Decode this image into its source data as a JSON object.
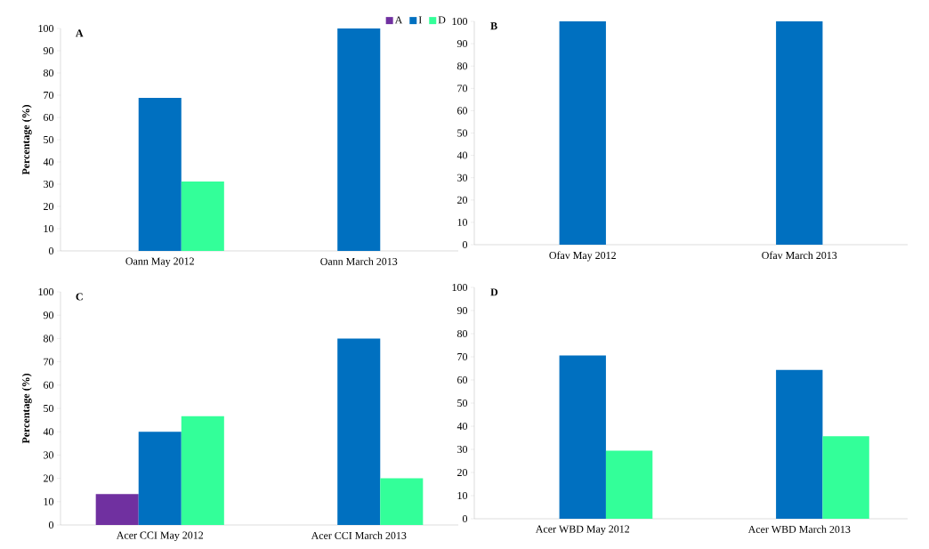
{
  "chart_data": [
    {
      "type": "bar",
      "title": "A",
      "ylabel": "Percentage (%)",
      "categories": [
        "Oann May 2012",
        "Oann March 2013"
      ],
      "series": [
        {
          "name": "A",
          "color": "#7030a0",
          "values": [
            null,
            null
          ]
        },
        {
          "name": "I",
          "color": "#0070c0",
          "values": [
            68.8,
            100
          ]
        },
        {
          "name": "D",
          "color": "#33ff99",
          "values": [
            31.2,
            null
          ]
        }
      ],
      "ylim": [
        0,
        100
      ],
      "yticks": [
        0,
        10,
        20,
        30,
        40,
        50,
        60,
        70,
        80,
        90,
        100
      ],
      "legend": "top right"
    },
    {
      "type": "bar",
      "title": "B",
      "categories": [
        "Ofav May 2012",
        "Ofav March 2013"
      ],
      "series": [
        {
          "color": "#7030a0",
          "values": [
            null,
            null
          ]
        },
        {
          "color": "#0070c0",
          "values": [
            100,
            100
          ]
        },
        {
          "color": "#33ff99",
          "values": [
            null,
            null
          ]
        }
      ],
      "ylim": [
        0,
        100
      ],
      "yticks": [
        0,
        10,
        20,
        30,
        40,
        50,
        60,
        70,
        80,
        90,
        100
      ]
    },
    {
      "type": "bar",
      "title": "C",
      "ylabel": "Percentage (%)",
      "categories": [
        "Acer CCI May 2012",
        "Acer CCI March 2013"
      ],
      "series": [
        {
          "color": "#7030a0",
          "values": [
            13.3,
            null
          ]
        },
        {
          "color": "#0070c0",
          "values": [
            40,
            80
          ]
        },
        {
          "color": "#33ff99",
          "values": [
            46.7,
            20
          ]
        }
      ],
      "ylim": [
        0,
        100
      ],
      "yticks": [
        0,
        10,
        20,
        30,
        40,
        50,
        60,
        70,
        80,
        90,
        100
      ]
    },
    {
      "type": "bar",
      "title": "D",
      "categories": [
        "Acer WBD May 2012",
        "Acer WBD March 2013"
      ],
      "series": [
        {
          "color": "#7030a0",
          "values": [
            null,
            null
          ]
        },
        {
          "color": "#0070c0",
          "values": [
            70.6,
            64.3
          ]
        },
        {
          "color": "#33ff99",
          "values": [
            29.4,
            35.7
          ]
        }
      ],
      "ylim": [
        0,
        100
      ],
      "yticks": [
        0,
        10,
        20,
        30,
        40,
        50,
        60,
        70,
        80,
        90,
        100
      ]
    }
  ]
}
